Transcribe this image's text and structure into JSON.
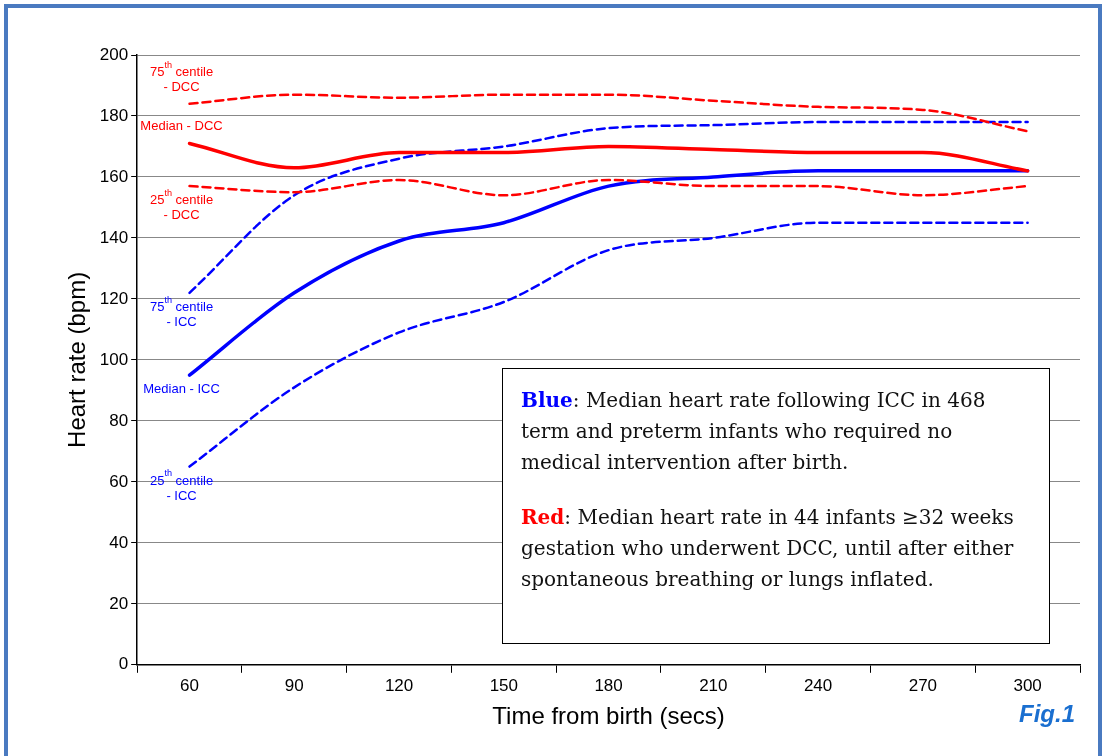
{
  "chart_data": {
    "type": "line",
    "xlabel": "Time from birth (secs)",
    "ylabel": "Heart rate (bpm)",
    "categories": [
      "60",
      "90",
      "120",
      "150",
      "180",
      "210",
      "240",
      "270",
      "300"
    ],
    "ylim": [
      0,
      200
    ],
    "yticks": [
      0,
      20,
      40,
      60,
      80,
      100,
      120,
      140,
      160,
      180,
      200
    ],
    "grid": "y",
    "legend": false,
    "marker": "none",
    "series": [
      {
        "name": "75$^{th}$ centile - DCC",
        "color": "#ff0000",
        "line_style": "dashed",
        "values": [
          184,
          187,
          186,
          187,
          187,
          185,
          183,
          182,
          175
        ]
      },
      {
        "name": "Median - DCC",
        "color": "#ff0000",
        "line_style": "solid",
        "values": [
          171,
          163,
          168,
          168,
          170,
          169,
          168,
          168,
          162
        ]
      },
      {
        "name": "25$^{th}$ centile - DCC",
        "color": "#ff0000",
        "line_style": "dashed",
        "values": [
          157,
          155,
          159,
          154,
          159,
          157,
          157,
          154,
          157
        ]
      },
      {
        "name": "75$^{th}$ centile - ICC",
        "color": "#0000ff",
        "line_style": "dashed",
        "values": [
          122,
          154,
          166,
          170,
          176,
          177,
          178,
          178,
          178
        ]
      },
      {
        "name": "Median - ICC",
        "color": "#0000ff",
        "line_style": "solid",
        "values": [
          95,
          122,
          139,
          145,
          157,
          160,
          162,
          162,
          162
        ]
      },
      {
        "name": "25$^{th}$ centile - ICC",
        "color": "#0000ff",
        "line_style": "dashed",
        "values": [
          65,
          91,
          109,
          119,
          136,
          140,
          145,
          145,
          145
        ]
      }
    ],
    "annotations": [
      "Blue: Median heart rate following ICC in 468 term and preterm infants who required no medical intervention after birth.",
      "Red: Median heart rate in 44 infants ≥32 weeks gestation who underwent DCC, until after either spontaneous breathing or lungs inflated.",
      "Fig.1"
    ]
  }
}
